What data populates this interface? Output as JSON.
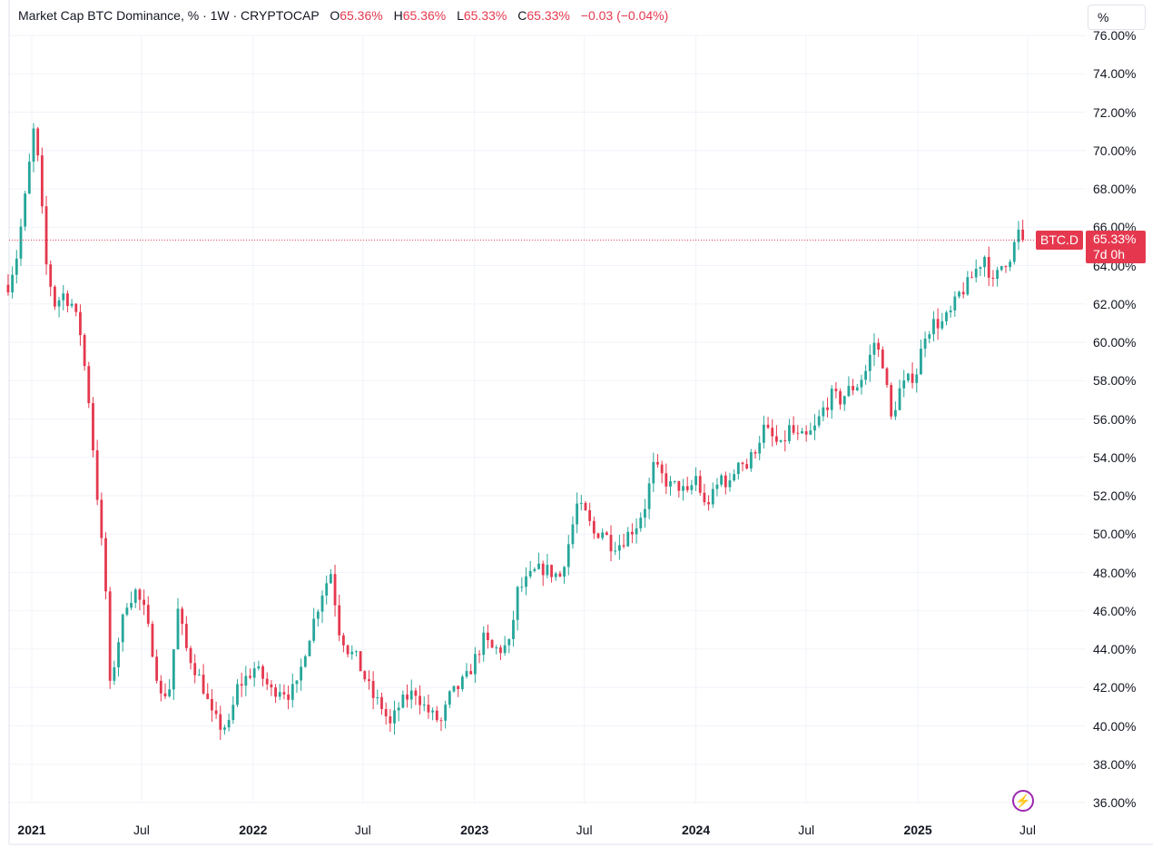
{
  "legend": {
    "title": "Market Cap BTC Dominance, % · 1W · CRYPTOCAP",
    "open_label": "O",
    "open_value": "65.36%",
    "high_label": "H",
    "high_value": "65.36%",
    "low_label": "L",
    "low_value": "65.33%",
    "close_label": "C",
    "close_value": "65.33%",
    "change": "−0.03 (−0.04%)"
  },
  "scale_mode": "%",
  "last_price": {
    "symbol": "BTC.D",
    "value": "65.33%",
    "countdown": "7d 0h"
  },
  "colors": {
    "up": "#26a69a",
    "down": "#e5384e",
    "grid": "#f0f3fa",
    "accent": "#9c27b0"
  },
  "icons": {
    "flash": "lightning-icon"
  },
  "chart_data": {
    "type": "candlestick",
    "title": "Market Cap BTC Dominance, % · 1W · CRYPTOCAP",
    "y_ticks": [
      "76.00%",
      "74.00%",
      "72.00%",
      "70.00%",
      "68.00%",
      "66.00%",
      "64.00%",
      "62.00%",
      "60.00%",
      "58.00%",
      "56.00%",
      "54.00%",
      "52.00%",
      "50.00%",
      "48.00%",
      "46.00%",
      "44.00%",
      "42.00%",
      "40.00%",
      "38.00%",
      "36.00%"
    ],
    "x_ticks": [
      {
        "label": "2021",
        "date": "2021-01-01",
        "bold": true
      },
      {
        "label": "Jul",
        "date": "2021-07-01",
        "bold": false
      },
      {
        "label": "2022",
        "date": "2022-01-01",
        "bold": true
      },
      {
        "label": "Jul",
        "date": "2022-07-01",
        "bold": false
      },
      {
        "label": "2023",
        "date": "2023-01-01",
        "bold": true
      },
      {
        "label": "Jul",
        "date": "2023-07-01",
        "bold": false
      },
      {
        "label": "2024",
        "date": "2024-01-01",
        "bold": true
      },
      {
        "label": "Jul",
        "date": "2024-07-01",
        "bold": false
      },
      {
        "label": "2025",
        "date": "2025-01-01",
        "bold": true
      },
      {
        "label": "Jul",
        "date": "2025-07-01",
        "bold": false
      }
    ],
    "y_range": [
      36,
      76
    ],
    "grid": true,
    "last_close": 65.33,
    "anchors": [
      [
        "2020-11-23",
        63.0
      ],
      [
        "2020-12-07",
        64.5
      ],
      [
        "2020-12-21",
        67.5
      ],
      [
        "2021-01-04",
        71.0
      ],
      [
        "2021-01-11",
        69.5
      ],
      [
        "2021-01-25",
        64.0
      ],
      [
        "2021-02-08",
        62.0
      ],
      [
        "2021-02-22",
        62.5
      ],
      [
        "2021-03-08",
        62.0
      ],
      [
        "2021-03-22",
        60.5
      ],
      [
        "2021-04-05",
        57.0
      ],
      [
        "2021-04-19",
        52.0
      ],
      [
        "2021-05-03",
        47.0
      ],
      [
        "2021-05-10",
        42.0
      ],
      [
        "2021-05-24",
        44.5
      ],
      [
        "2021-06-07",
        46.5
      ],
      [
        "2021-06-21",
        47.0
      ],
      [
        "2021-07-05",
        46.0
      ],
      [
        "2021-07-19",
        44.0
      ],
      [
        "2021-08-02",
        41.5
      ],
      [
        "2021-08-16",
        42.0
      ],
      [
        "2021-08-30",
        46.0
      ],
      [
        "2021-09-13",
        44.0
      ],
      [
        "2021-09-27",
        43.0
      ],
      [
        "2021-10-11",
        42.0
      ],
      [
        "2021-10-25",
        40.5
      ],
      [
        "2021-11-08",
        40.0
      ],
      [
        "2021-11-22",
        40.0
      ],
      [
        "2021-12-06",
        42.0
      ],
      [
        "2021-12-20",
        42.5
      ],
      [
        "2022-01-03",
        43.0
      ],
      [
        "2022-01-17",
        42.5
      ],
      [
        "2022-01-31",
        41.8
      ],
      [
        "2022-02-14",
        42.0
      ],
      [
        "2022-02-28",
        41.7
      ],
      [
        "2022-03-14",
        42.0
      ],
      [
        "2022-03-28",
        44.0
      ],
      [
        "2022-04-11",
        45.5
      ],
      [
        "2022-04-25",
        47.0
      ],
      [
        "2022-05-09",
        48.0
      ],
      [
        "2022-05-23",
        45.0
      ],
      [
        "2022-06-06",
        44.0
      ],
      [
        "2022-06-20",
        43.5
      ],
      [
        "2022-07-04",
        42.5
      ],
      [
        "2022-07-18",
        41.5
      ],
      [
        "2022-08-01",
        41.0
      ],
      [
        "2022-08-15",
        40.0
      ],
      [
        "2022-08-29",
        41.0
      ],
      [
        "2022-09-12",
        41.5
      ],
      [
        "2022-09-26",
        41.8
      ],
      [
        "2022-10-10",
        41.0
      ],
      [
        "2022-10-24",
        40.5
      ],
      [
        "2022-11-07",
        40.2
      ],
      [
        "2022-11-21",
        41.5
      ],
      [
        "2022-12-05",
        42.0
      ],
      [
        "2022-12-19",
        42.5
      ],
      [
        "2023-01-02",
        43.5
      ],
      [
        "2023-01-16",
        44.5
      ],
      [
        "2023-01-30",
        44.0
      ],
      [
        "2023-02-13",
        44.0
      ],
      [
        "2023-02-27",
        44.2
      ],
      [
        "2023-03-13",
        47.0
      ],
      [
        "2023-03-27",
        47.5
      ],
      [
        "2023-04-10",
        48.0
      ],
      [
        "2023-04-24",
        48.2
      ],
      [
        "2023-05-08",
        48.0
      ],
      [
        "2023-05-22",
        47.8
      ],
      [
        "2023-06-05",
        49.5
      ],
      [
        "2023-06-19",
        51.5
      ],
      [
        "2023-07-03",
        51.0
      ],
      [
        "2023-07-17",
        50.0
      ],
      [
        "2023-07-31",
        50.2
      ],
      [
        "2023-08-14",
        49.5
      ],
      [
        "2023-08-28",
        49.5
      ],
      [
        "2023-09-11",
        50.0
      ],
      [
        "2023-09-25",
        50.5
      ],
      [
        "2023-10-09",
        51.5
      ],
      [
        "2023-10-23",
        53.5
      ],
      [
        "2023-11-06",
        53.0
      ],
      [
        "2023-11-20",
        52.5
      ],
      [
        "2023-12-04",
        52.5
      ],
      [
        "2023-12-18",
        52.0
      ],
      [
        "2024-01-01",
        53.0
      ],
      [
        "2024-01-15",
        51.5
      ],
      [
        "2024-01-29",
        52.0
      ],
      [
        "2024-02-12",
        53.0
      ],
      [
        "2024-02-26",
        52.5
      ],
      [
        "2024-03-11",
        54.0
      ],
      [
        "2024-03-25",
        53.5
      ],
      [
        "2024-04-08",
        54.5
      ],
      [
        "2024-04-22",
        55.5
      ],
      [
        "2024-05-06",
        55.0
      ],
      [
        "2024-05-20",
        54.5
      ],
      [
        "2024-06-03",
        55.5
      ],
      [
        "2024-06-17",
        55.0
      ],
      [
        "2024-07-01",
        55.0
      ],
      [
        "2024-07-15",
        55.5
      ],
      [
        "2024-07-29",
        56.5
      ],
      [
        "2024-08-12",
        57.2
      ],
      [
        "2024-08-26",
        57.0
      ],
      [
        "2024-09-09",
        57.5
      ],
      [
        "2024-09-23",
        57.8
      ],
      [
        "2024-10-07",
        58.5
      ],
      [
        "2024-10-21",
        60.0
      ],
      [
        "2024-11-04",
        59.0
      ],
      [
        "2024-11-18",
        56.0
      ],
      [
        "2024-12-02",
        57.5
      ],
      [
        "2024-12-16",
        58.0
      ],
      [
        "2024-12-30",
        58.5
      ],
      [
        "2025-01-13",
        60.5
      ],
      [
        "2025-01-27",
        61.0
      ],
      [
        "2025-02-10",
        61.0
      ],
      [
        "2025-02-24",
        61.5
      ],
      [
        "2025-03-10",
        62.5
      ],
      [
        "2025-03-24",
        63.0
      ],
      [
        "2025-04-07",
        63.8
      ],
      [
        "2025-04-21",
        64.5
      ],
      [
        "2025-05-05",
        63.0
      ],
      [
        "2025-05-19",
        64.0
      ],
      [
        "2025-06-02",
        64.5
      ],
      [
        "2025-06-16",
        65.7
      ],
      [
        "2025-06-23",
        65.33
      ]
    ]
  }
}
